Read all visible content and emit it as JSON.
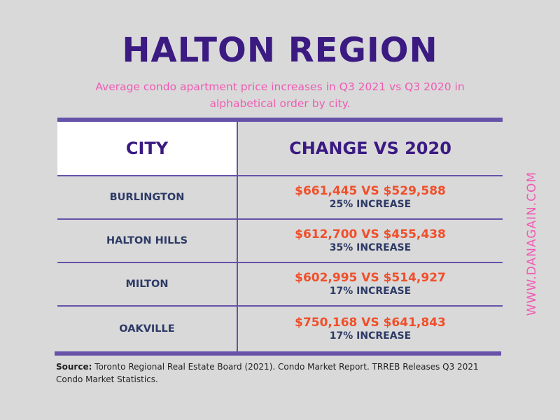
{
  "header": {
    "title": "HALTON REGION",
    "subtitle": "Average condo apartment price increases in Q3 2021 vs Q3 2020 in alphabetical order by city."
  },
  "chart_data": {
    "type": "table",
    "columns": [
      "CITY",
      "CHANGE VS 2020"
    ],
    "rows": [
      {
        "city": "BURLINGTON",
        "prices": "$661,445 VS $529,588",
        "change": "25% INCREASE"
      },
      {
        "city": "HALTON HILLS",
        "prices": "$612,700 VS $455,438",
        "change": "35% INCREASE"
      },
      {
        "city": "MILTON",
        "prices": "$602,995 VS $514,927",
        "change": "17% INCREASE"
      },
      {
        "city": "OAKVILLE",
        "prices": "$750,168 VS $641,843",
        "change": "17% INCREASE"
      }
    ]
  },
  "footer": {
    "source_label": "Source:",
    "source_text": " Toronto Regional Real Estate Board (2021). Condo Market Report. TRREB Releases Q3 2021 Condo Market Statistics."
  },
  "watermark": "WWW.DANAGAIN.COM",
  "colors": {
    "background": "#d9d9d9",
    "title": "#3b1a82",
    "accent_pink": "#f05ab4",
    "price_orange": "#f04f2a",
    "rule_purple": "#6652a8"
  }
}
